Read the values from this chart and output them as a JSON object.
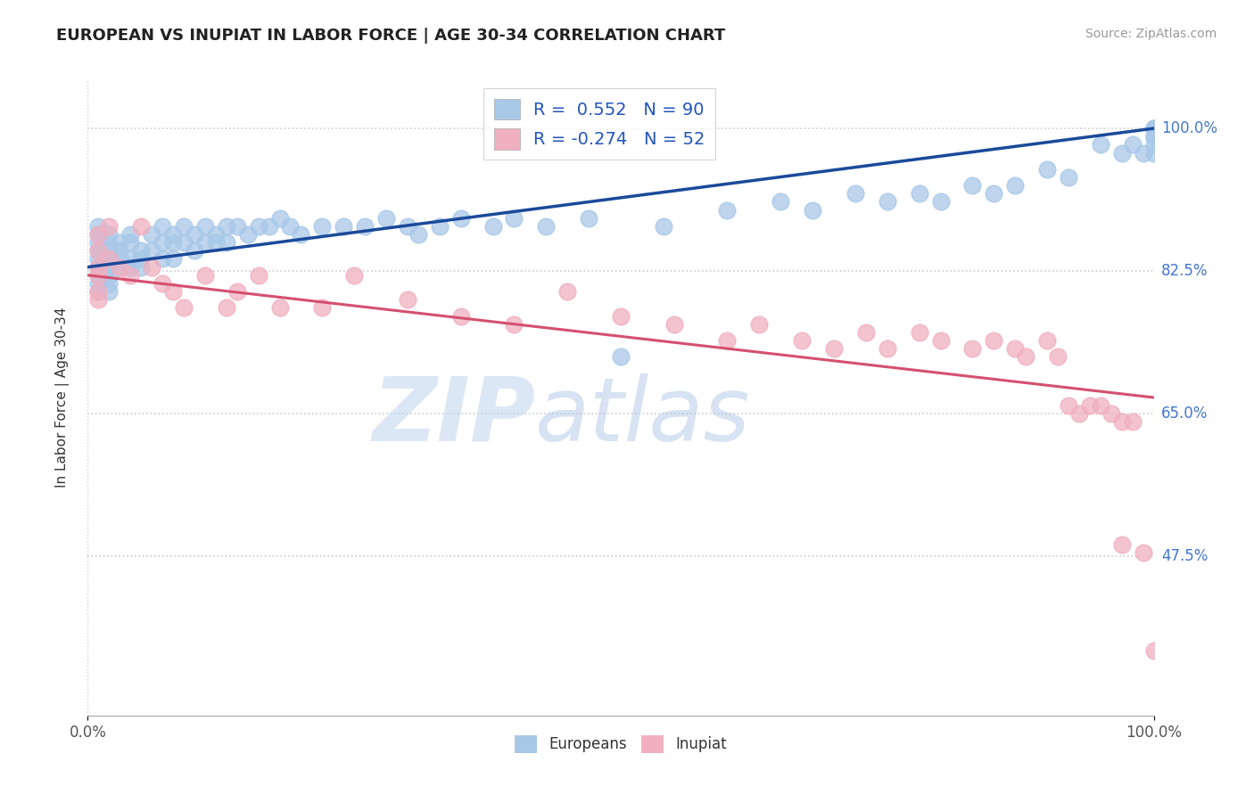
{
  "title": "EUROPEAN VS INUPIAT IN LABOR FORCE | AGE 30-34 CORRELATION CHART",
  "source": "Source: ZipAtlas.com",
  "ylabel": "In Labor Force | Age 30-34",
  "xlim": [
    0.0,
    1.0
  ],
  "ylim": [
    0.28,
    1.06
  ],
  "yticks": [
    0.475,
    0.65,
    0.825,
    1.0
  ],
  "ytick_labels": [
    "47.5%",
    "65.0%",
    "82.5%",
    "100.0%"
  ],
  "xticks": [
    0.0,
    1.0
  ],
  "xtick_labels": [
    "0.0%",
    "100.0%"
  ],
  "european_color": "#a8c8e8",
  "inupiat_color": "#f0b0c0",
  "european_R": 0.552,
  "european_N": 90,
  "inupiat_R": -0.274,
  "inupiat_N": 52,
  "trend_blue": "#1a4a9a",
  "trend_pink": "#d45070",
  "watermark_zip": "ZIP",
  "watermark_atlas": "atlas",
  "background_color": "#ffffff",
  "grid_color": "#cccccc",
  "eu_x": [
    0.01,
    0.01,
    0.01,
    0.01,
    0.01,
    0.01,
    0.01,
    0.01,
    0.01,
    0.02,
    0.02,
    0.02,
    0.02,
    0.02,
    0.02,
    0.02,
    0.02,
    0.03,
    0.03,
    0.03,
    0.03,
    0.04,
    0.04,
    0.04,
    0.04,
    0.05,
    0.05,
    0.05,
    0.06,
    0.06,
    0.07,
    0.07,
    0.07,
    0.08,
    0.08,
    0.08,
    0.09,
    0.09,
    0.1,
    0.1,
    0.11,
    0.11,
    0.12,
    0.12,
    0.13,
    0.13,
    0.14,
    0.15,
    0.16,
    0.17,
    0.18,
    0.19,
    0.2,
    0.22,
    0.24,
    0.26,
    0.28,
    0.3,
    0.31,
    0.33,
    0.35,
    0.38,
    0.4,
    0.43,
    0.47,
    0.5,
    0.54,
    0.6,
    0.65,
    0.68,
    0.72,
    0.75,
    0.78,
    0.8,
    0.83,
    0.85,
    0.87,
    0.9,
    0.92,
    0.95,
    0.97,
    0.98,
    0.99,
    1.0,
    1.0,
    1.0,
    1.0,
    1.0,
    1.0,
    1.0
  ],
  "eu_y": [
    0.88,
    0.87,
    0.86,
    0.85,
    0.84,
    0.83,
    0.82,
    0.81,
    0.8,
    0.87,
    0.86,
    0.85,
    0.84,
    0.83,
    0.82,
    0.81,
    0.8,
    0.86,
    0.85,
    0.84,
    0.83,
    0.87,
    0.86,
    0.84,
    0.83,
    0.85,
    0.84,
    0.83,
    0.87,
    0.85,
    0.88,
    0.86,
    0.84,
    0.87,
    0.86,
    0.84,
    0.88,
    0.86,
    0.87,
    0.85,
    0.88,
    0.86,
    0.87,
    0.86,
    0.88,
    0.86,
    0.88,
    0.87,
    0.88,
    0.88,
    0.89,
    0.88,
    0.87,
    0.88,
    0.88,
    0.88,
    0.89,
    0.88,
    0.87,
    0.88,
    0.89,
    0.88,
    0.89,
    0.88,
    0.89,
    0.72,
    0.88,
    0.9,
    0.91,
    0.9,
    0.92,
    0.91,
    0.92,
    0.91,
    0.93,
    0.92,
    0.93,
    0.95,
    0.94,
    0.98,
    0.97,
    0.98,
    0.97,
    1.0,
    0.99,
    0.98,
    0.97,
    1.0,
    0.99,
    1.0
  ],
  "in_x": [
    0.01,
    0.01,
    0.01,
    0.01,
    0.01,
    0.01,
    0.02,
    0.02,
    0.03,
    0.04,
    0.05,
    0.06,
    0.07,
    0.08,
    0.09,
    0.11,
    0.13,
    0.14,
    0.16,
    0.18,
    0.22,
    0.25,
    0.3,
    0.35,
    0.4,
    0.45,
    0.5,
    0.55,
    0.6,
    0.63,
    0.67,
    0.7,
    0.73,
    0.75,
    0.78,
    0.8,
    0.83,
    0.85,
    0.87,
    0.88,
    0.9,
    0.91,
    0.92,
    0.93,
    0.94,
    0.95,
    0.96,
    0.97,
    0.97,
    0.98,
    0.99,
    1.0
  ],
  "in_y": [
    0.87,
    0.85,
    0.83,
    0.82,
    0.8,
    0.79,
    0.88,
    0.84,
    0.83,
    0.82,
    0.88,
    0.83,
    0.81,
    0.8,
    0.78,
    0.82,
    0.78,
    0.8,
    0.82,
    0.78,
    0.78,
    0.82,
    0.79,
    0.77,
    0.76,
    0.8,
    0.77,
    0.76,
    0.74,
    0.76,
    0.74,
    0.73,
    0.75,
    0.73,
    0.75,
    0.74,
    0.73,
    0.74,
    0.73,
    0.72,
    0.74,
    0.72,
    0.66,
    0.65,
    0.66,
    0.66,
    0.65,
    0.64,
    0.49,
    0.64,
    0.48,
    0.36
  ]
}
